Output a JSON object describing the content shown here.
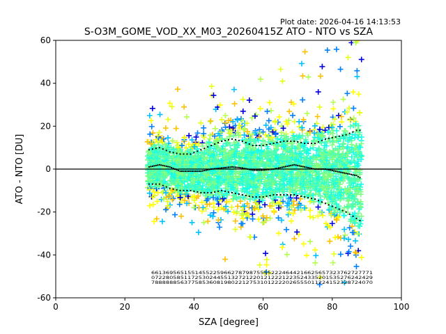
{
  "chart_data": {
    "type": "scatter",
    "plot_date": "Plot date: 2026-04-16 14:13:53",
    "title": "S-O3M_GOME_VOD_XX_M03_20260415Z ATO - NTO vs SZA",
    "xlabel": "SZA [degree]",
    "ylabel": "ATO - NTO [DU]",
    "xlim": [
      0,
      100
    ],
    "ylim": [
      -60,
      60
    ],
    "xticks": [
      0,
      20,
      40,
      60,
      80,
      100
    ],
    "yticks": [
      -60,
      -40,
      -20,
      0,
      20,
      40,
      60
    ],
    "zero_line": 0,
    "marker": "+",
    "point_colors": [
      "#0000dd",
      "#0080ff",
      "#00bfff",
      "#19ffe6",
      "#4dffb3",
      "#80ff80",
      "#b3ff4d",
      "#e6ff19",
      "#ffff00",
      "#ffc000"
    ],
    "mean": {
      "x": [
        27,
        30,
        33,
        36,
        39,
        42,
        45,
        48,
        51,
        54,
        57,
        60,
        63,
        66,
        69,
        72,
        75,
        78,
        81,
        84,
        87,
        88
      ],
      "y": [
        1,
        2,
        1,
        -1,
        -1,
        -1,
        0,
        0.5,
        1,
        0.5,
        -0.5,
        -0.5,
        0,
        1,
        2,
        1,
        0,
        0,
        -1,
        -2,
        -3,
        -4
      ]
    },
    "upper_sigma": {
      "x": [
        27,
        30,
        33,
        36,
        39,
        42,
        45,
        48,
        51,
        54,
        57,
        60,
        63,
        66,
        69,
        72,
        75,
        78,
        81,
        84,
        87,
        88
      ],
      "y": [
        9,
        10,
        8,
        7,
        7,
        9,
        11,
        13,
        14,
        13,
        11,
        11,
        12,
        13,
        13,
        12,
        12,
        14,
        15,
        16,
        18,
        18
      ]
    },
    "lower_sigma": {
      "x": [
        27,
        30,
        33,
        36,
        39,
        42,
        45,
        48,
        51,
        54,
        57,
        60,
        63,
        66,
        69,
        72,
        75,
        78,
        81,
        84,
        87,
        88
      ],
      "y": [
        -7,
        -7,
        -9,
        -10,
        -10,
        -11,
        -11,
        -10,
        -11,
        -12,
        -13,
        -13,
        -12,
        -12,
        -12,
        -13,
        -14,
        -16,
        -18,
        -20,
        -23,
        -24
      ]
    },
    "count_label_rows": [
      "6613695651551455225966278798755552224644216625657323762727771",
      "0722805851172530244551327212201212221223524335201535276242429",
      "7888888563775853608198022127531012222026555011224152328724070"
    ]
  }
}
